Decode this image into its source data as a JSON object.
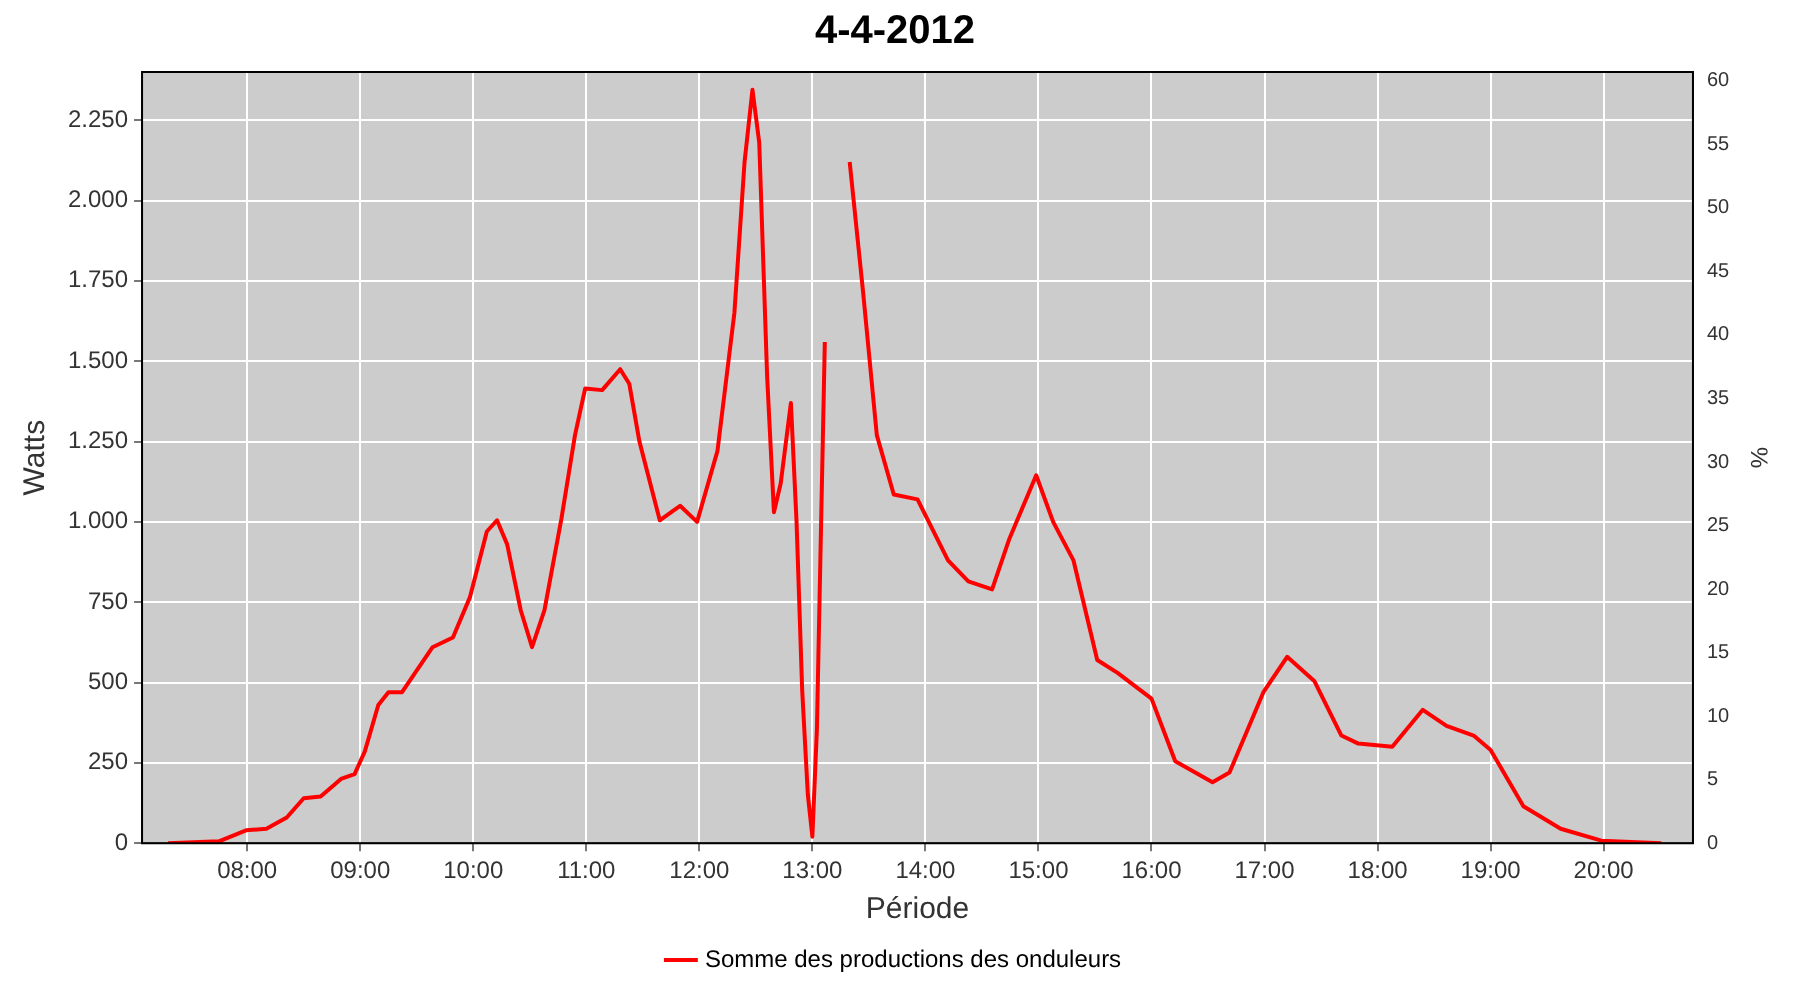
{
  "chart_data": {
    "type": "line",
    "title": "4-4-2012",
    "xlabel": "Période",
    "ylabel": "Watts",
    "y2label": "%",
    "x": [
      7.3,
      7.75,
      7.99,
      8.17,
      8.35,
      8.5,
      8.65,
      8.83,
      8.95,
      9.04,
      9.16,
      9.25,
      9.37,
      9.64,
      9.82,
      9.97,
      10.12,
      10.21,
      10.3,
      10.42,
      10.52,
      10.63,
      10.78,
      10.9,
      10.99,
      11.14,
      11.3,
      11.38,
      11.47,
      11.65,
      11.83,
      11.98,
      12.16,
      12.31,
      12.4,
      12.47,
      12.53,
      12.6,
      12.66,
      12.72,
      12.81,
      12.86,
      12.91,
      12.96,
      13.0,
      13.04,
      13.11,
      13.18,
      13.26,
      13.33,
      13.45,
      13.57,
      13.72,
      13.93,
      14.2,
      14.38,
      14.59,
      14.74,
      14.98,
      15.13,
      15.31,
      15.52,
      15.7,
      16.0,
      16.21,
      16.54,
      16.69,
      16.99,
      17.2,
      17.44,
      17.68,
      17.83,
      18.13,
      18.4,
      18.61,
      18.85,
      19.0,
      19.29,
      19.62,
      19.98,
      20.51
    ],
    "series": [
      {
        "name": "Somme des productions des onduleurs",
        "color": "#ff0000",
        "values": [
          0,
          6,
          40,
          45,
          80,
          140,
          145,
          200,
          215,
          285,
          430,
          470,
          470,
          610,
          640,
          765,
          970,
          1005,
          930,
          725,
          610,
          725,
          1010,
          1270,
          1415,
          1410,
          1475,
          1430,
          1250,
          1005,
          1050,
          1000,
          1220,
          1650,
          2120,
          2345,
          2180,
          1450,
          1030,
          1120,
          1370,
          1000,
          475,
          150,
          20,
          355,
          1560,
          null,
          null,
          2120,
          1710,
          1270,
          1085,
          1070,
          880,
          815,
          790,
          945,
          1145,
          1000,
          880,
          570,
          530,
          450,
          255,
          190,
          220,
          470,
          580,
          505,
          335,
          310,
          300,
          415,
          365,
          335,
          290,
          115,
          45,
          8,
          0
        ]
      }
    ],
    "xlim": [
      7.07,
      20.79
    ],
    "xticks": [
      {
        "value": 8,
        "label": "08:00"
      },
      {
        "value": 9,
        "label": "09:00"
      },
      {
        "value": 10,
        "label": "10:00"
      },
      {
        "value": 11,
        "label": "11:00"
      },
      {
        "value": 12,
        "label": "12:00"
      },
      {
        "value": 13,
        "label": "13:00"
      },
      {
        "value": 14,
        "label": "14:00"
      },
      {
        "value": 15,
        "label": "15:00"
      },
      {
        "value": 16,
        "label": "16:00"
      },
      {
        "value": 17,
        "label": "17:00"
      },
      {
        "value": 18,
        "label": "18:00"
      },
      {
        "value": 19,
        "label": "19:00"
      },
      {
        "value": 20,
        "label": "20:00"
      }
    ],
    "ylim": [
      0,
      2400
    ],
    "yticks": [
      0,
      250,
      500,
      750,
      {
        "value": 1000,
        "label": "1.000"
      },
      {
        "value": 1250,
        "label": "1.250"
      },
      {
        "value": 1500,
        "label": "1.500"
      },
      {
        "value": 1750,
        "label": "1.750"
      },
      {
        "value": 2000,
        "label": "2.000"
      },
      {
        "value": 2250,
        "label": "2.250"
      }
    ],
    "y2lim": [
      0,
      60.7
    ],
    "y2ticks": [
      0,
      5,
      10,
      15,
      20,
      25,
      30,
      35,
      40,
      45,
      50,
      55,
      60
    ],
    "grid": true,
    "legend": "bottom",
    "marker": "none",
    "line_style": "solid"
  }
}
